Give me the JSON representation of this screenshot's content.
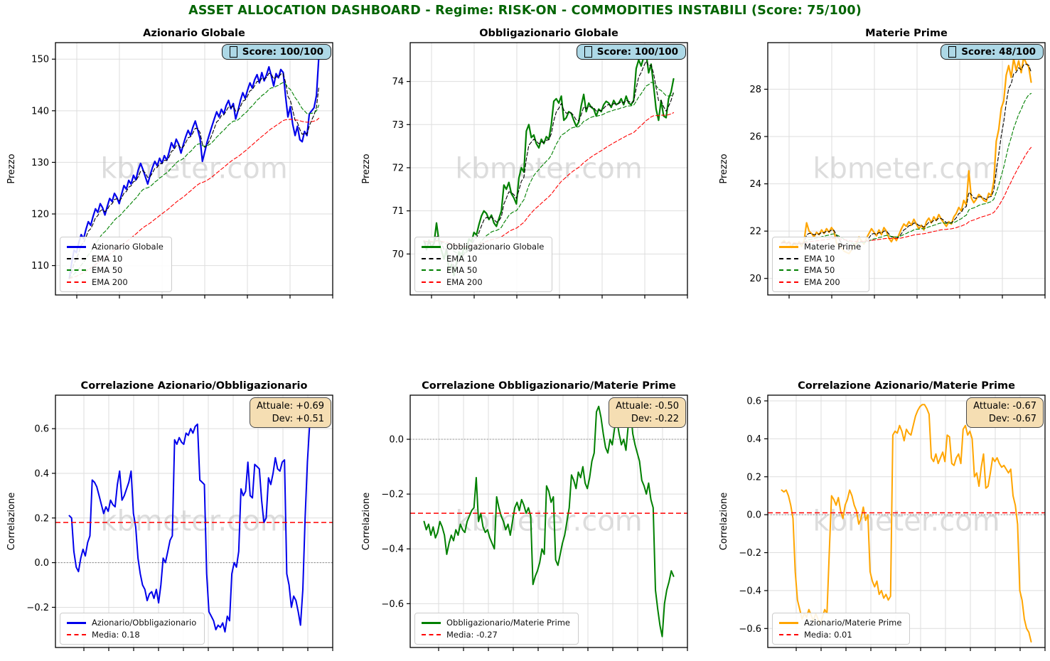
{
  "header": {
    "title": "ASSET ALLOCATION DASHBOARD - Regime: RISK-ON  - COMMODITIES INSTABILI (Score: 75/100)",
    "color": "#006400"
  },
  "watermark": "kbmeter.com",
  "score_icon": "tofu-box-unrendered-emoji",
  "chart_data": [
    {
      "id": "azionario",
      "type": "line",
      "title": "Azionario Globale",
      "ylabel": "Prezzo",
      "ylim": [
        104.3,
        153.2
      ],
      "yticks": [
        110,
        120,
        130,
        140,
        150
      ],
      "ytick_labels": [
        "110",
        "120",
        "130",
        "140",
        "150"
      ],
      "x_grid_spacing": 60,
      "x_grid_count": 7,
      "grid": true,
      "legend_position": "lower-left",
      "score_badge": "Score: 100/100",
      "series": [
        {
          "name": "Azionario Globale",
          "color": "#0000EB",
          "width": 2.2,
          "values": [
            107.5,
            110.5,
            113.0,
            112.5,
            114.5,
            116.0,
            115.2,
            117.0,
            118.5,
            117.8,
            119.5,
            121.0,
            120.3,
            122.0,
            121.2,
            119.8,
            121.5,
            123.0,
            122.4,
            124.0,
            123.2,
            122.0,
            123.8,
            125.5,
            124.8,
            126.5,
            125.8,
            127.5,
            126.6,
            128.5,
            129.8,
            128.6,
            127.2,
            125.8,
            127.5,
            129.0,
            130.2,
            129.3,
            130.8,
            129.8,
            131.3,
            130.4,
            132.0,
            133.8,
            132.8,
            134.5,
            133.5,
            131.8,
            133.5,
            135.0,
            136.2,
            135.2,
            136.8,
            138.0,
            136.4,
            134.6,
            130.2,
            132.0,
            134.0,
            135.5,
            137.0,
            138.4,
            139.8,
            138.8,
            140.3,
            139.4,
            141.0,
            142.0,
            140.4,
            141.4,
            138.4,
            140.0,
            142.0,
            143.5,
            142.4,
            144.0,
            145.4,
            144.4,
            146.0,
            147.0,
            145.4,
            147.4,
            145.8,
            147.0,
            148.5,
            146.8,
            144.8,
            147.2,
            146.4,
            148.0,
            147.4,
            142.8,
            138.8,
            140.8,
            137.4,
            135.2,
            137.0,
            134.4,
            134.0,
            136.0,
            135.2,
            139.4,
            140.0,
            140.6,
            143.0,
            150.5
          ]
        },
        {
          "name": "EMA 10",
          "color": "#000000",
          "width": 1.1,
          "dash": "5,3",
          "ema_of": 0,
          "ema_window": 4
        },
        {
          "name": "EMA 50",
          "color": "#008000",
          "width": 1.1,
          "dash": "5,3",
          "ema_of": 0,
          "ema_window": 18
        },
        {
          "name": "EMA 200",
          "color": "#FF0000",
          "width": 1.1,
          "dash": "5,3",
          "ema_of": 0,
          "ema_window": 60
        }
      ]
    },
    {
      "id": "obbligazionario",
      "type": "line",
      "title": "Obbligazionario Globale",
      "ylabel": "Prezzo",
      "ylim": [
        69.05,
        74.9
      ],
      "yticks": [
        70,
        71,
        72,
        73,
        74
      ],
      "ytick_labels": [
        "70",
        "71",
        "72",
        "73",
        "74"
      ],
      "x_grid_spacing": 60,
      "x_grid_count": 7,
      "grid": true,
      "legend_position": "lower-left",
      "score_badge": "Score: 100/100",
      "series": [
        {
          "name": "Obbligazionario Globale",
          "color": "#008000",
          "width": 2.2,
          "values": [
            70.3,
            70.1,
            70.32,
            70.15,
            70.25,
            70.72,
            70.28,
            70.08,
            69.88,
            70.12,
            69.6,
            69.76,
            69.5,
            69.8,
            70.05,
            69.9,
            70.18,
            70.08,
            70.35,
            70.28,
            70.5,
            70.44,
            70.68,
            70.88,
            71.0,
            70.94,
            70.8,
            70.9,
            70.72,
            70.64,
            70.82,
            71.0,
            71.6,
            71.5,
            71.66,
            71.4,
            71.3,
            71.16,
            71.76,
            72.0,
            71.9,
            72.85,
            73.0,
            72.7,
            72.76,
            72.56,
            72.46,
            72.66,
            72.56,
            72.72,
            72.66,
            73.0,
            73.54,
            73.6,
            73.5,
            73.66,
            73.1,
            73.16,
            73.3,
            73.26,
            73.1,
            72.96,
            73.06,
            73.44,
            73.7,
            73.3,
            73.5,
            73.4,
            73.36,
            73.2,
            73.36,
            73.3,
            73.46,
            73.54,
            73.5,
            73.4,
            73.56,
            73.46,
            73.5,
            73.6,
            73.46,
            73.66,
            73.5,
            73.46,
            73.56,
            74.3,
            74.5,
            74.36,
            74.56,
            74.66,
            74.2,
            74.4,
            73.9,
            73.36,
            73.1,
            73.56,
            73.2,
            73.16,
            73.6,
            73.76,
            74.06
          ]
        },
        {
          "name": "EMA 10",
          "color": "#000000",
          "width": 1.1,
          "dash": "5,3",
          "ema_of": 0,
          "ema_window": 4
        },
        {
          "name": "EMA 50",
          "color": "#008000",
          "width": 1.1,
          "dash": "5,3",
          "ema_of": 0,
          "ema_window": 18
        },
        {
          "name": "EMA 200",
          "color": "#FF0000",
          "width": 1.1,
          "dash": "5,3",
          "ema_of": 0,
          "ema_window": 55
        }
      ]
    },
    {
      "id": "materie-prime",
      "type": "line",
      "title": "Materie Prime",
      "ylabel": "Prezzo",
      "ylim": [
        19.3,
        29.97
      ],
      "yticks": [
        20,
        22,
        24,
        26,
        28
      ],
      "ytick_labels": [
        "20",
        "22",
        "24",
        "26",
        "28"
      ],
      "x_grid_spacing": 60,
      "x_grid_count": 7,
      "grid": true,
      "legend_position": "lower-left",
      "score_badge": "Score: 48/100",
      "series": [
        {
          "name": "Materie Prime",
          "color": "#FFA500",
          "width": 2.2,
          "values": [
            21.5,
            21.6,
            21.45,
            21.55,
            21.3,
            21.5,
            21.4,
            21.55,
            21.35,
            21.6,
            22.35,
            22.0,
            21.9,
            21.75,
            21.95,
            21.85,
            22.05,
            21.9,
            22.1,
            21.95,
            22.15,
            22.0,
            21.5,
            21.4,
            21.3,
            21.15,
            21.1,
            21.05,
            21.2,
            21.35,
            21.5,
            21.75,
            21.6,
            21.45,
            21.7,
            21.9,
            22.1,
            21.95,
            21.8,
            22.05,
            21.85,
            22.15,
            22.0,
            21.7,
            21.55,
            21.75,
            21.6,
            21.85,
            22.1,
            22.3,
            22.2,
            22.4,
            22.25,
            22.5,
            22.3,
            22.1,
            22.25,
            22.05,
            22.4,
            22.55,
            22.35,
            22.6,
            22.45,
            22.7,
            22.5,
            22.35,
            22.2,
            22.4,
            22.3,
            22.6,
            22.75,
            23.0,
            22.85,
            23.3,
            23.1,
            24.55,
            23.4,
            23.2,
            23.35,
            23.55,
            23.45,
            23.3,
            23.25,
            23.6,
            23.5,
            24.1,
            25.8,
            26.3,
            27.2,
            27.5,
            28.6,
            29.0,
            28.5,
            29.3,
            28.8,
            29.2,
            28.7,
            29.35,
            29.1,
            28.95,
            28.3
          ]
        },
        {
          "name": "EMA 10",
          "color": "#000000",
          "width": 1.1,
          "dash": "5,3",
          "ema_of": 0,
          "ema_window": 4
        },
        {
          "name": "EMA 50",
          "color": "#008000",
          "width": 1.1,
          "dash": "5,3",
          "ema_of": 0,
          "ema_window": 16
        },
        {
          "name": "EMA 200",
          "color": "#FF0000",
          "width": 1.1,
          "dash": "5,3",
          "ema_of": 0,
          "ema_window": 45
        }
      ]
    },
    {
      "id": "corr-azionario-obbligazionario",
      "type": "line",
      "title": "Correlazione Azionario/Obbligazionario",
      "ylabel": "Correlazione",
      "ylim": [
        -0.38,
        0.75
      ],
      "yticks": [
        -0.2,
        0.0,
        0.2,
        0.4,
        0.6
      ],
      "ytick_labels": [
        "−0.2",
        "0.0",
        "0.2",
        "0.4",
        "0.6"
      ],
      "x_grid_spacing": 35,
      "x_grid_count": 11,
      "grid": true,
      "zero_line": 0.0,
      "legend_position": "lower-left",
      "annotation": {
        "line1": "Attuale: +0.69",
        "line2": "Dev: +0.51"
      },
      "series": [
        {
          "name": "Azionario/Obbligazionario",
          "color": "#0000EB",
          "width": 2.0,
          "values": [
            0.21,
            0.2,
            0.05,
            -0.02,
            -0.04,
            0.02,
            0.06,
            0.03,
            0.09,
            0.12,
            0.37,
            0.36,
            0.34,
            0.3,
            0.26,
            0.22,
            0.25,
            0.23,
            0.28,
            0.26,
            0.25,
            0.35,
            0.41,
            0.28,
            0.3,
            0.33,
            0.36,
            0.41,
            0.22,
            0.16,
            0.02,
            -0.05,
            -0.1,
            -0.12,
            -0.17,
            -0.14,
            -0.13,
            -0.16,
            -0.12,
            -0.18,
            -0.1,
            0.02,
            0.0,
            0.05,
            0.1,
            0.12,
            0.55,
            0.53,
            0.56,
            0.54,
            0.53,
            0.58,
            0.57,
            0.6,
            0.58,
            0.61,
            0.62,
            0.37,
            0.36,
            0.35,
            -0.05,
            -0.22,
            -0.24,
            -0.26,
            -0.3,
            -0.28,
            -0.29,
            -0.27,
            -0.31,
            -0.24,
            -0.26,
            -0.05,
            0.0,
            -0.02,
            0.05,
            0.33,
            0.3,
            0.32,
            0.45,
            0.3,
            0.29,
            0.44,
            0.43,
            0.42,
            0.28,
            0.18,
            0.2,
            0.38,
            0.35,
            0.4,
            0.47,
            0.42,
            0.41,
            0.45,
            0.46,
            -0.05,
            -0.1,
            -0.2,
            -0.15,
            -0.17,
            -0.22,
            -0.28,
            -0.12,
            0.2,
            0.45,
            0.62,
            0.69,
            0.63,
            0.62,
            0.69
          ]
        },
        {
          "name": "Media: 0.18",
          "color": "#FF0000",
          "width": 1.5,
          "dash": "7,4",
          "hline": 0.18
        }
      ]
    },
    {
      "id": "corr-obbligazionario-materie",
      "type": "line",
      "title": "Correlazione Obbligazionario/Materie Prime",
      "ylabel": "Correlazione",
      "ylim": [
        -0.76,
        0.161
      ],
      "yticks": [
        -0.6,
        -0.4,
        -0.2,
        0.0
      ],
      "ytick_labels": [
        "−0.6",
        "−0.4",
        "−0.2",
        "0.0"
      ],
      "x_grid_spacing": 35,
      "x_grid_count": 11,
      "grid": true,
      "zero_line": 0.0,
      "legend_position": "lower-left",
      "annotation": {
        "line1": "Attuale: -0.50",
        "line2": "Dev: -0.22"
      },
      "series": [
        {
          "name": "Obbligazionario/Materie Prime",
          "color": "#008000",
          "width": 2.0,
          "values": [
            -0.3,
            -0.33,
            -0.31,
            -0.35,
            -0.32,
            -0.36,
            -0.34,
            -0.3,
            -0.32,
            -0.35,
            -0.42,
            -0.38,
            -0.35,
            -0.37,
            -0.33,
            -0.35,
            -0.31,
            -0.33,
            -0.34,
            -0.3,
            -0.28,
            -0.26,
            -0.25,
            -0.14,
            -0.3,
            -0.27,
            -0.32,
            -0.34,
            -0.33,
            -0.36,
            -0.38,
            -0.4,
            -0.21,
            -0.25,
            -0.28,
            -0.3,
            -0.33,
            -0.31,
            -0.35,
            -0.3,
            -0.25,
            -0.23,
            -0.26,
            -0.22,
            -0.24,
            -0.27,
            -0.25,
            -0.28,
            -0.53,
            -0.5,
            -0.48,
            -0.45,
            -0.4,
            -0.42,
            -0.17,
            -0.19,
            -0.23,
            -0.21,
            -0.44,
            -0.46,
            -0.42,
            -0.38,
            -0.35,
            -0.3,
            -0.25,
            -0.13,
            -0.15,
            -0.18,
            -0.12,
            -0.14,
            -0.1,
            -0.16,
            -0.18,
            -0.14,
            -0.08,
            -0.05,
            0.1,
            0.12,
            0.08,
            0.02,
            -0.03,
            -0.05,
            0.0,
            -0.02,
            0.04,
            0.07,
            0.02,
            -0.02,
            0.0,
            -0.04,
            0.05,
            0.11,
            0.02,
            -0.02,
            -0.05,
            -0.08,
            -0.15,
            -0.17,
            -0.2,
            -0.16,
            -0.22,
            -0.25,
            -0.55,
            -0.62,
            -0.68,
            -0.72,
            -0.6,
            -0.55,
            -0.52,
            -0.48,
            -0.5
          ]
        },
        {
          "name": "Media: -0.27",
          "color": "#FF0000",
          "width": 1.5,
          "dash": "7,4",
          "hline": -0.27
        }
      ]
    },
    {
      "id": "corr-azionario-materie",
      "type": "line",
      "title": "Correlazione Azionario/Materie Prime",
      "ylabel": "Correlazione",
      "ylim": [
        -0.7,
        0.63
      ],
      "yticks": [
        -0.6,
        -0.4,
        -0.2,
        0.0,
        0.2,
        0.4,
        0.6
      ],
      "ytick_labels": [
        "−0.6",
        "−0.4",
        "−0.2",
        "0.0",
        "0.2",
        "0.4",
        "0.6"
      ],
      "x_grid_spacing": 35,
      "x_grid_count": 11,
      "grid": true,
      "zero_line": 0.0,
      "legend_position": "lower-left",
      "annotation": {
        "line1": "Attuale: -0.67",
        "line2": "Dev: -0.67"
      },
      "series": [
        {
          "name": "Azionario/Materie Prime",
          "color": "#FFA500",
          "width": 2.0,
          "values": [
            0.13,
            0.12,
            0.13,
            0.1,
            0.05,
            -0.02,
            -0.3,
            -0.45,
            -0.5,
            -0.55,
            -0.52,
            -0.54,
            -0.5,
            -0.53,
            -0.56,
            -0.52,
            -0.55,
            -0.58,
            -0.54,
            -0.5,
            -0.52,
            -0.2,
            0.1,
            0.08,
            0.05,
            0.09,
            0.02,
            -0.02,
            0.05,
            0.08,
            0.13,
            0.1,
            0.05,
            0.02,
            -0.05,
            -0.02,
            0.04,
            -0.03,
            0.0,
            -0.3,
            -0.35,
            -0.38,
            -0.35,
            -0.42,
            -0.4,
            -0.44,
            -0.42,
            -0.45,
            -0.43,
            0.42,
            0.44,
            0.43,
            0.47,
            0.44,
            0.39,
            0.45,
            0.43,
            0.42,
            0.47,
            0.52,
            0.55,
            0.57,
            0.58,
            0.58,
            0.56,
            0.53,
            0.3,
            0.28,
            0.32,
            0.27,
            0.3,
            0.33,
            0.28,
            0.42,
            0.41,
            0.27,
            0.26,
            0.3,
            0.32,
            0.27,
            0.45,
            0.47,
            0.42,
            0.44,
            0.4,
            0.2,
            0.22,
            0.15,
            0.25,
            0.32,
            0.14,
            0.15,
            0.22,
            0.3,
            0.28,
            0.3,
            0.27,
            0.25,
            0.26,
            0.24,
            0.22,
            0.24,
            0.1,
            0.05,
            -0.05,
            -0.4,
            -0.45,
            -0.55,
            -0.6,
            -0.62,
            -0.67
          ]
        },
        {
          "name": "Media: 0.01",
          "color": "#FF0000",
          "width": 1.5,
          "dash": "7,4",
          "hline": 0.01
        }
      ]
    }
  ]
}
